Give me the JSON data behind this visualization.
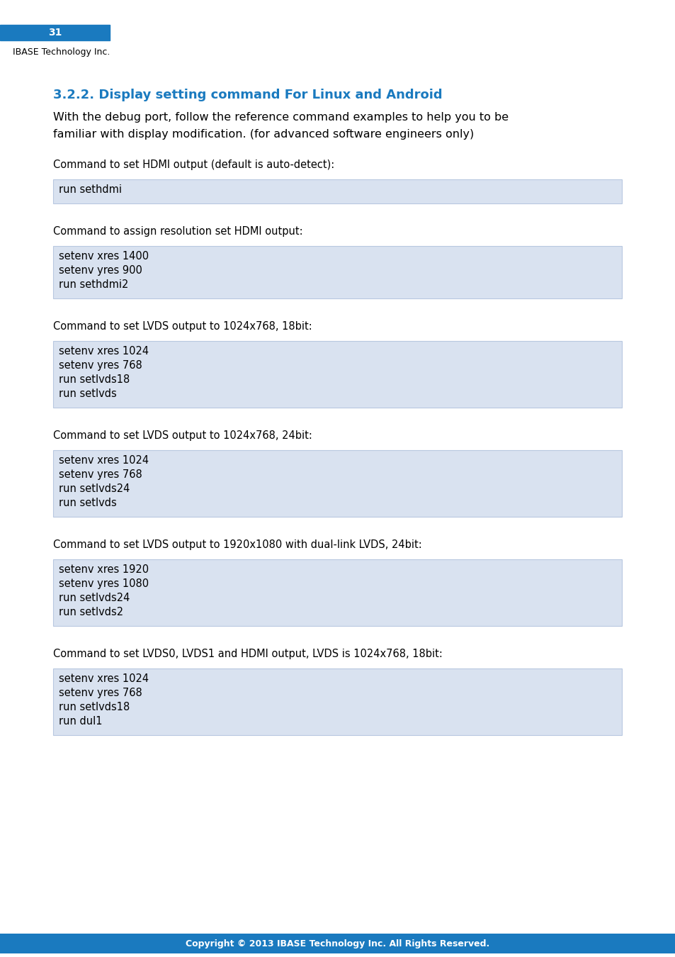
{
  "page_number": "31",
  "header_company": "IBASE Technology Inc.",
  "header_bg_color": "#1a7abf",
  "header_text_color": "#ffffff",
  "section_title": "3.2.2. Display setting command For Linux and Android",
  "section_title_color": "#1a7abf",
  "intro_text_line1": "With the debug port, follow the reference command examples to help you to be",
  "intro_text_line2": "familiar with display modification. (for advanced software engineers only)",
  "footer_text": "Copyright © 2013 IBASE Technology Inc. All Rights Reserved.",
  "footer_bg_color": "#1a7abf",
  "footer_text_color": "#ffffff",
  "code_bg_color": "#d9e2f0",
  "code_border_color": "#b8c8e0",
  "commands": [
    {
      "label": "Command to set HDMI output (default is auto-detect):",
      "lines": [
        "run sethdmi"
      ]
    },
    {
      "label": "Command to assign resolution set HDMI output:",
      "lines": [
        "setenv xres 1400",
        "setenv yres 900",
        "run sethdmi2"
      ]
    },
    {
      "label": "Command to set LVDS output to 1024x768, 18bit:",
      "lines": [
        "setenv xres 1024",
        "setenv yres 768",
        "run setlvds18",
        "run setlvds"
      ]
    },
    {
      "label": "Command to set LVDS output to 1024x768, 24bit:",
      "lines": [
        "setenv xres 1024",
        "setenv yres 768",
        "run setlvds24",
        "run setlvds"
      ]
    },
    {
      "label": "Command to set LVDS output to 1920x1080 with dual-link LVDS, 24bit:",
      "lines": [
        "setenv xres 1920",
        "setenv yres 1080",
        "run setlvds24",
        "run setlvds2"
      ]
    },
    {
      "label": "Command to set LVDS0, LVDS1 and HDMI output, LVDS is 1024x768, 18bit:",
      "lines": [
        "setenv xres 1024",
        "setenv yres 768",
        "run setlvds18",
        "run dul1"
      ]
    }
  ]
}
